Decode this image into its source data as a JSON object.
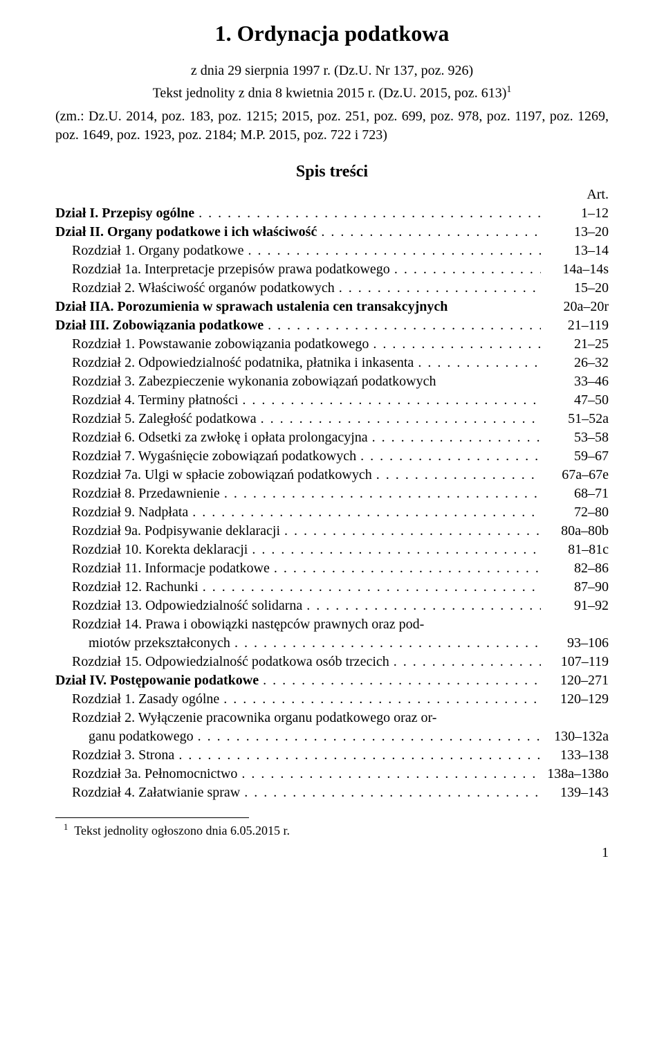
{
  "title": "1. Ordynacja podatkowa",
  "subtitle_pre": "z dnia 29 sierpnia 1997 r. (Dz.U. Nr 137, poz. 926)",
  "textline": "Tekst jednolity z dnia 8 kwietnia 2015 r. (Dz.U. 2015, poz. 613)",
  "amend": "(zm.: Dz.U. 2014, poz. 183, poz. 1215; 2015, poz. 251, poz. 699, poz. 978, poz. 1197, poz. 1269, poz. 1649, poz. 1923, poz. 2184; M.P. 2015, poz. 722 i 723)",
  "toc_heading": "Spis treści",
  "art_label": "Art.",
  "toc": [
    {
      "label": "Dział I. Przepisy ogólne",
      "page": "1–12",
      "bold": true,
      "indent": 0,
      "dots": true
    },
    {
      "label": "Dział II. Organy podatkowe i ich właściwość",
      "page": "13–20",
      "bold": true,
      "indent": 0,
      "dots": true
    },
    {
      "label": "Rozdział 1. Organy podatkowe",
      "page": "13–14",
      "bold": false,
      "indent": 1,
      "dots": true
    },
    {
      "label": "Rozdział 1a. Interpretacje przepisów prawa podatkowego",
      "page": "14a–14s",
      "bold": false,
      "indent": 1,
      "dots": true
    },
    {
      "label": "Rozdział 2. Właściwość organów podatkowych",
      "page": "15–20",
      "bold": false,
      "indent": 1,
      "dots": true
    },
    {
      "label": "Dział IIA. Porozumienia w sprawach ustalenia cen transakcyjnych",
      "page": "20a–20r",
      "bold": true,
      "indent": 0,
      "dots": false
    },
    {
      "label": "Dział III. Zobowiązania podatkowe",
      "page": "21–119",
      "bold": true,
      "indent": 0,
      "dots": true
    },
    {
      "label": "Rozdział 1. Powstawanie zobowiązania podatkowego",
      "page": "21–25",
      "bold": false,
      "indent": 1,
      "dots": true
    },
    {
      "label": "Rozdział 2. Odpowiedzialność podatnika, płatnika i inkasenta",
      "page": "26–32",
      "bold": false,
      "indent": 1,
      "dots": true
    },
    {
      "label": "Rozdział 3. Zabezpieczenie wykonania zobowiązań podatkowych",
      "page": "33–46",
      "bold": false,
      "indent": 1,
      "dots": false
    },
    {
      "label": "Rozdział 4. Terminy płatności",
      "page": "47–50",
      "bold": false,
      "indent": 1,
      "dots": true
    },
    {
      "label": "Rozdział 5. Zaległość podatkowa",
      "page": "51–52a",
      "bold": false,
      "indent": 1,
      "dots": true
    },
    {
      "label": "Rozdział 6. Odsetki za zwłokę i opłata prolongacyjna",
      "page": "53–58",
      "bold": false,
      "indent": 1,
      "dots": true
    },
    {
      "label": "Rozdział 7. Wygaśnięcie zobowiązań podatkowych",
      "page": "59–67",
      "bold": false,
      "indent": 1,
      "dots": true
    },
    {
      "label": "Rozdział 7a. Ulgi w spłacie zobowiązań podatkowych",
      "page": "67a–67e",
      "bold": false,
      "indent": 1,
      "dots": true
    },
    {
      "label": "Rozdział 8. Przedawnienie",
      "page": "68–71",
      "bold": false,
      "indent": 1,
      "dots": true
    },
    {
      "label": "Rozdział 9. Nadpłata",
      "page": "72–80",
      "bold": false,
      "indent": 1,
      "dots": true
    },
    {
      "label": "Rozdział 9a. Podpisywanie deklaracji",
      "page": "80a–80b",
      "bold": false,
      "indent": 1,
      "dots": true
    },
    {
      "label": "Rozdział 10. Korekta deklaracji",
      "page": "81–81c",
      "bold": false,
      "indent": 1,
      "dots": true
    },
    {
      "label": "Rozdział 11. Informacje podatkowe",
      "page": "82–86",
      "bold": false,
      "indent": 1,
      "dots": true
    },
    {
      "label": "Rozdział 12. Rachunki",
      "page": "87–90",
      "bold": false,
      "indent": 1,
      "dots": true
    },
    {
      "label": "Rozdział 13. Odpowiedzialność solidarna",
      "page": "91–92",
      "bold": false,
      "indent": 1,
      "dots": true
    },
    {
      "label": "Rozdział 14. Prawa i obowiązki następców prawnych oraz podmiotów przekształconych",
      "page": "93–106",
      "bold": false,
      "indent": 1,
      "dots": true,
      "wrap": true,
      "line1": "Rozdział 14. Prawa i obowiązki następców prawnych oraz pod-",
      "line2": "miotów przekształconych"
    },
    {
      "label": "Rozdział 15. Odpowiedzialność podatkowa osób trzecich",
      "page": "107–119",
      "bold": false,
      "indent": 1,
      "dots": true
    },
    {
      "label": "Dział IV. Postępowanie podatkowe",
      "page": "120–271",
      "bold": true,
      "indent": 0,
      "dots": true
    },
    {
      "label": "Rozdział 1. Zasady ogólne",
      "page": "120–129",
      "bold": false,
      "indent": 1,
      "dots": true
    },
    {
      "label": "Rozdział 2. Wyłączenie pracownika organu podatkowego oraz organu podatkowego",
      "page": "130–132a",
      "bold": false,
      "indent": 1,
      "dots": true,
      "wrap": true,
      "line1": "Rozdział 2. Wyłączenie pracownika organu podatkowego oraz or-",
      "line2": "ganu podatkowego"
    },
    {
      "label": "Rozdział 3. Strona",
      "page": "133–138",
      "bold": false,
      "indent": 1,
      "dots": true
    },
    {
      "label": "Rozdział 3a. Pełnomocnictwo",
      "page": "138a–138o",
      "bold": false,
      "indent": 1,
      "dots": true
    },
    {
      "label": "Rozdział 4. Załatwianie spraw",
      "page": "139–143",
      "bold": false,
      "indent": 1,
      "dots": true
    }
  ],
  "footnote_marker": "1",
  "footnote_text": "Tekst jednolity ogłoszono dnia 6.05.2015 r.",
  "page_number": "1"
}
